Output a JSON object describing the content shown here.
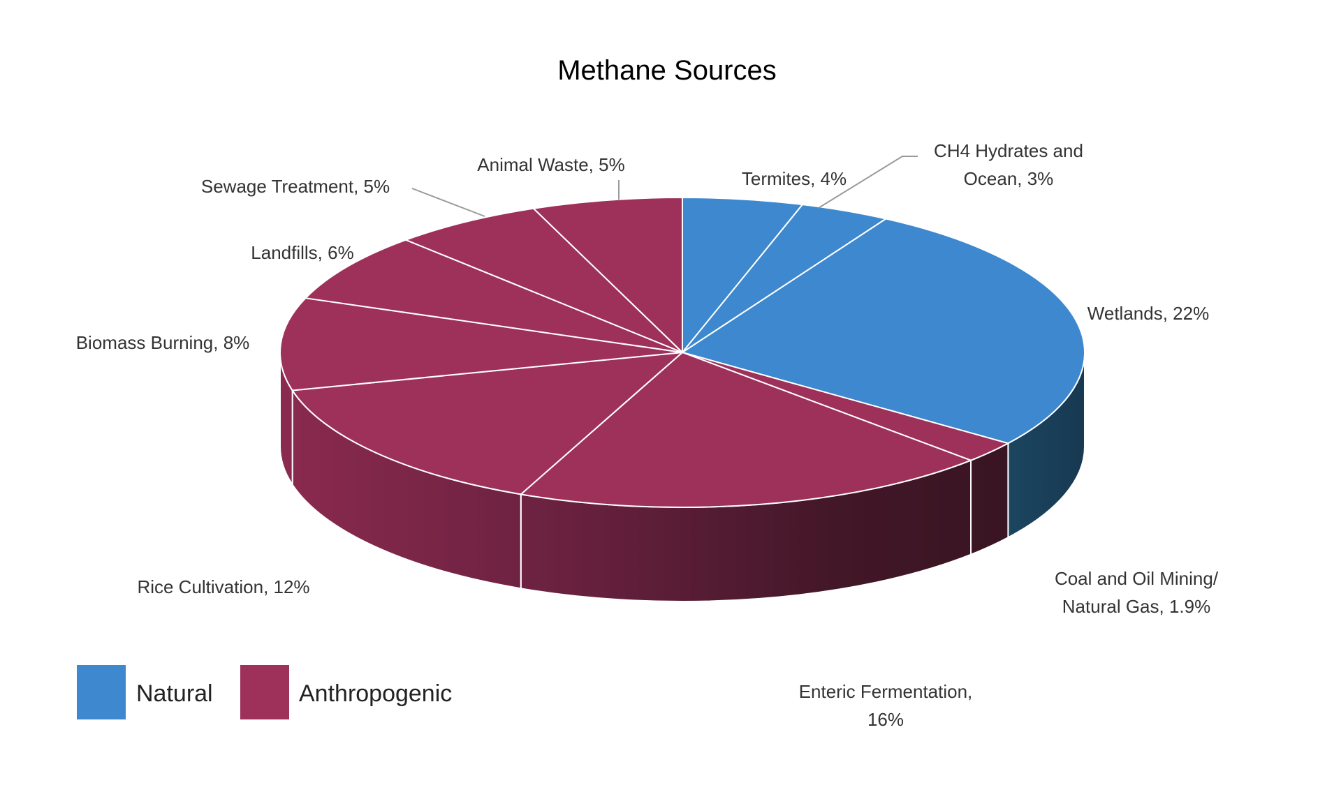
{
  "chart_data": {
    "type": "pie",
    "title": "Methane Sources",
    "style": "3d",
    "legend_position": "bottom-left",
    "legend": [
      {
        "name": "Natural",
        "color": "#3D88CE"
      },
      {
        "name": "Anthropogenic",
        "color": "#9E3159"
      }
    ],
    "slices": [
      {
        "label_lines": [
          "Termites, 4%"
        ],
        "value": 4,
        "group": "Natural"
      },
      {
        "label_lines": [
          "CH4 Hydrates and",
          "Ocean, 3%"
        ],
        "value": 3,
        "group": "Natural"
      },
      {
        "label_lines": [
          "Wetlands, 22%"
        ],
        "value": 22,
        "group": "Natural"
      },
      {
        "label_lines": [
          "Coal and Oil Mining/",
          "Natural Gas, 1.9%"
        ],
        "value": 1.9,
        "group": "Anthropogenic"
      },
      {
        "label_lines": [
          "Enteric Fermentation,",
          "16%"
        ],
        "value": 16,
        "group": "Anthropogenic"
      },
      {
        "label_lines": [
          "Rice Cultivation, 12%"
        ],
        "value": 12,
        "group": "Anthropogenic"
      },
      {
        "label_lines": [
          "Biomass Burning, 8%"
        ],
        "value": 8,
        "group": "Anthropogenic"
      },
      {
        "label_lines": [
          "Landfills, 6%"
        ],
        "value": 6,
        "group": "Anthropogenic"
      },
      {
        "label_lines": [
          "Sewage Treatment, 5%"
        ],
        "value": 5,
        "group": "Anthropogenic"
      },
      {
        "label_lines": [
          "Animal Waste, 5%"
        ],
        "value": 5,
        "group": "Anthropogenic"
      }
    ]
  }
}
